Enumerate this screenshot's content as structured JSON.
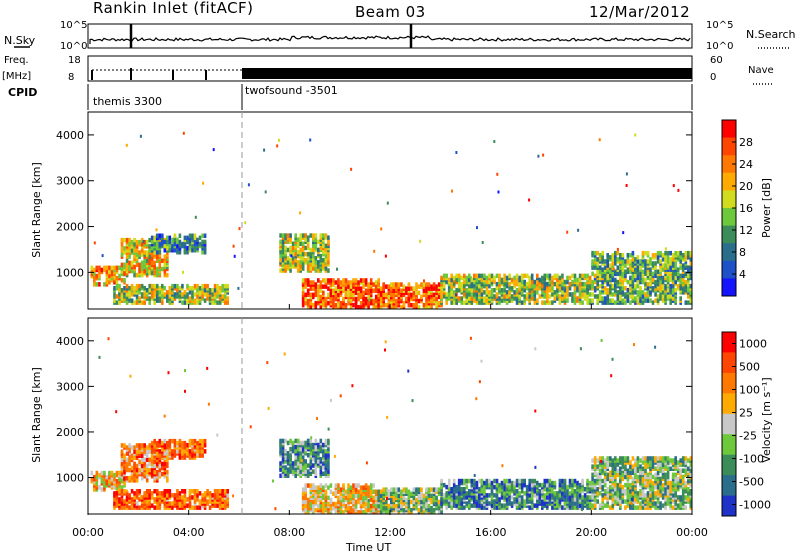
{
  "header": {
    "station": "Rankin Inlet (fitACF)",
    "beam": "Beam 03",
    "date": "12/Mar/2012"
  },
  "status_panels": {
    "nsky_label": "N.Sky",
    "nsearch_label": "N.Search",
    "nsky_ticks": [
      "10^5",
      "10^0"
    ],
    "nsearch_ticks": [
      "10^5",
      "10^0"
    ],
    "freq_label_1": "Freq.",
    "freq_label_2": "[MHz]",
    "freq_ticks": [
      "18",
      "8"
    ],
    "nave_label": "Nave",
    "nave_ticks": [
      "60",
      "0"
    ],
    "cpid_label": "CPID",
    "cpid_modes": [
      {
        "name": "themis 3300",
        "start_hour": 0,
        "end_hour": 6
      },
      {
        "name": "twofsound -3501",
        "start_hour": 6,
        "end_hour": 24
      }
    ]
  },
  "chart_data": [
    {
      "type": "heatmap",
      "name": "power",
      "ylabel": "Slant Range [km]",
      "yticks": [
        "1000",
        "2000",
        "3000",
        "4000"
      ],
      "ylim": [
        200,
        4500
      ],
      "xlim": [
        0,
        24
      ],
      "colorbar_label": "Power [dB]",
      "colorbar_ticks": [
        "4",
        "8",
        "12",
        "16",
        "20",
        "24",
        "28"
      ],
      "colorbar_colors": [
        "#1414ff",
        "#1e50c8",
        "#2a6e8c",
        "#3c8c5a",
        "#6ec83c",
        "#d2dc1e",
        "#ffaa00",
        "#ff7800",
        "#ff4600",
        "#ff0000"
      ],
      "echo_regions": [
        {
          "t0": 0.1,
          "t1": 1.5,
          "r0": 700,
          "r1": 1100,
          "level": 0.7
        },
        {
          "t0": 1.3,
          "t1": 3.2,
          "r0": 900,
          "r1": 1700,
          "level": 0.6
        },
        {
          "t0": 2.5,
          "t1": 4.6,
          "r0": 1400,
          "r1": 1800,
          "level": 0.3
        },
        {
          "t0": 1.0,
          "t1": 5.5,
          "r0": 300,
          "r1": 700,
          "level": 0.5
        },
        {
          "t0": 7.6,
          "t1": 9.5,
          "r0": 1000,
          "r1": 1800,
          "level": 0.5
        },
        {
          "t0": 8.5,
          "t1": 11.5,
          "r0": 200,
          "r1": 800,
          "level": 0.8
        },
        {
          "t0": 11.5,
          "t1": 14.0,
          "r0": 200,
          "r1": 700,
          "level": 0.8
        },
        {
          "t0": 14.0,
          "t1": 20.0,
          "r0": 300,
          "r1": 900,
          "level": 0.5
        },
        {
          "t0": 20.0,
          "t1": 24.0,
          "r0": 300,
          "r1": 1400,
          "level": 0.4
        }
      ]
    },
    {
      "type": "heatmap",
      "name": "velocity",
      "ylabel": "Slant Range [km]",
      "yticks": [
        "1000",
        "2000",
        "3000",
        "4000"
      ],
      "ylim": [
        200,
        4500
      ],
      "xlim": [
        0,
        24
      ],
      "xlabel": "Time UT",
      "xticks": [
        "00:00",
        "04:00",
        "08:00",
        "12:00",
        "16:00",
        "20:00",
        "00:00"
      ],
      "colorbar_label": "Velocity [m s^-1]",
      "colorbar_ticks": [
        "1000",
        "500",
        "100",
        "25",
        "-25",
        "-100",
        "-500",
        "-1000"
      ],
      "colorbar_colors": [
        "#1e32c8",
        "#2a6e8c",
        "#3c8c5a",
        "#6ec83c",
        "#c8c8c8",
        "#ffaa00",
        "#ff7800",
        "#ff4600",
        "#ff0000"
      ],
      "echo_regions": [
        {
          "t0": 0.1,
          "t1": 1.5,
          "r0": 700,
          "r1": 1100,
          "level": 0.6
        },
        {
          "t0": 1.3,
          "t1": 3.2,
          "r0": 900,
          "r1": 1700,
          "level": 0.7
        },
        {
          "t0": 2.5,
          "t1": 4.6,
          "r0": 1400,
          "r1": 1800,
          "level": 0.75
        },
        {
          "t0": 1.0,
          "t1": 5.5,
          "r0": 300,
          "r1": 700,
          "level": 0.8
        },
        {
          "t0": 7.6,
          "t1": 9.5,
          "r0": 1000,
          "r1": 1800,
          "level": 0.3
        },
        {
          "t0": 8.5,
          "t1": 11.5,
          "r0": 200,
          "r1": 800,
          "level": 0.6
        },
        {
          "t0": 11.5,
          "t1": 14.0,
          "r0": 200,
          "r1": 700,
          "level": 0.4
        },
        {
          "t0": 14.0,
          "t1": 20.0,
          "r0": 300,
          "r1": 900,
          "level": 0.25
        },
        {
          "t0": 20.0,
          "t1": 24.0,
          "r0": 300,
          "r1": 1400,
          "level": 0.4
        }
      ]
    }
  ]
}
